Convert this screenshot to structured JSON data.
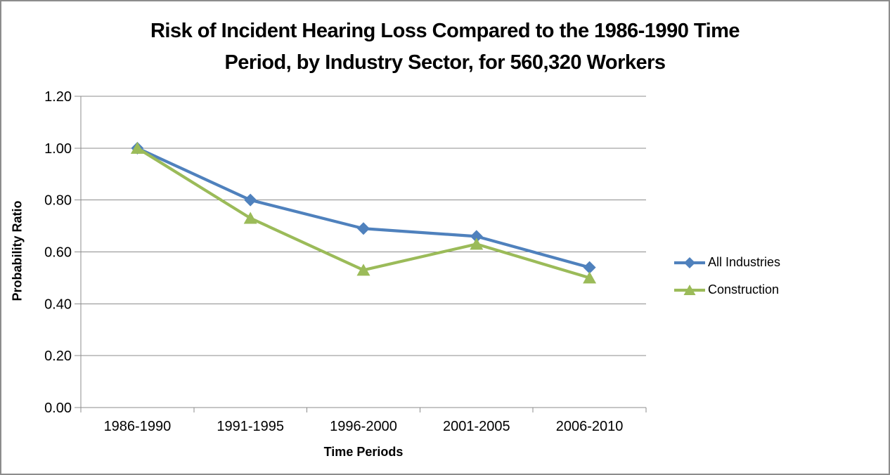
{
  "canvas": {
    "background": "#FFFFFF",
    "border_color": "#8C8C8C"
  },
  "chart_data": {
    "type": "line",
    "title": "Risk of Incident Hearing Loss Compared to the 1986-1990 Time Period, by Industry Sector, for 560,320 Workers",
    "title_lines": [
      "Risk of Incident Hearing Loss Compared to the 1986-1990 Time",
      "Period, by Industry Sector, for 560,320 Workers"
    ],
    "xlabel": "Time Periods",
    "ylabel": "Probability Ratio",
    "categories": [
      "1986-1990",
      "1991-1995",
      "1996-2000",
      "2001-2005",
      "2006-2010"
    ],
    "series": [
      {
        "name": "All Industries",
        "color": "#4F81BD",
        "marker": "diamond",
        "values": [
          1.0,
          0.8,
          0.69,
          0.66,
          0.54
        ]
      },
      {
        "name": "Construction",
        "color": "#9BBB59",
        "marker": "triangle",
        "values": [
          1.0,
          0.73,
          0.53,
          0.63,
          0.5
        ]
      }
    ],
    "ylim": [
      0.0,
      1.2
    ],
    "ytick_labels": [
      "0.00",
      "0.20",
      "0.40",
      "0.60",
      "0.80",
      "1.00",
      "1.20"
    ],
    "grid": true,
    "legend_position": "right",
    "gridline_color": "#8C8C8C",
    "axis_color": "#8C8C8C",
    "text_color": "#000000"
  }
}
